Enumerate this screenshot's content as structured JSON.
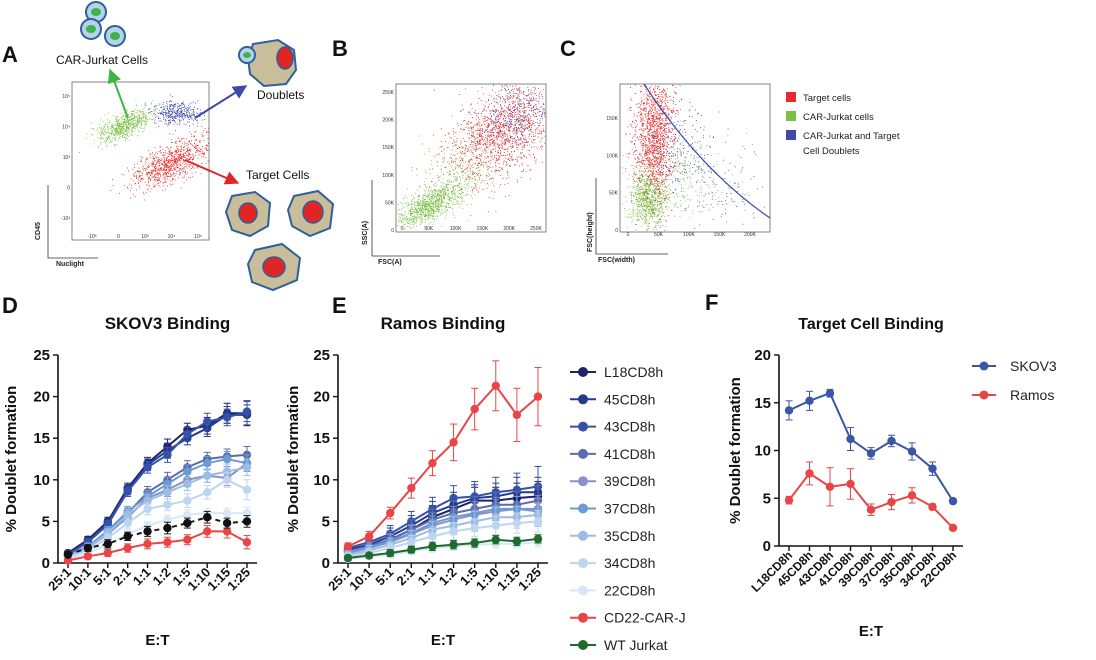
{
  "panel_labels": [
    "A",
    "B",
    "C",
    "D",
    "E",
    "F"
  ],
  "colors": {
    "target": "#ea2a2a",
    "car": "#7ac043",
    "doublet": "#3f4aa6",
    "cell_body": "#c9bd9a",
    "cell_outline": "#2e5f9e",
    "car_cell_body": "#b7d1e8",
    "cd22": "#e84646",
    "wt": "#1f6b2e",
    "skov3_line": "#3a56a8",
    "ramos_line": "#e84646"
  },
  "panel_a": {
    "car_label": "CAR-Jurkat Cells",
    "doublets_label": "Doublets",
    "target_label": "Target Cells",
    "xlabel": "Nuclight",
    "ylabel": "CD45",
    "yticks": [
      "10⁵",
      "10⁴",
      "10³",
      "0",
      "-10³"
    ],
    "xticks": [
      "-10³",
      "0",
      "10³",
      "10⁴",
      "10⁵"
    ]
  },
  "panel_b": {
    "xlabel": "FSC(A)",
    "ylabel": "SSC(A)",
    "xticks": [
      "0",
      "50K",
      "100K",
      "150K",
      "200K",
      "250K"
    ],
    "yticks": [
      "250K",
      "200K",
      "150K",
      "100K",
      "50K",
      "0"
    ]
  },
  "panel_c": {
    "xlabel": "FSC(width)",
    "ylabel": "FSC(height)",
    "xticks": [
      "0",
      "50K",
      "100K",
      "150K",
      "200K"
    ],
    "yticks": [
      "150K",
      "100K",
      "50K",
      "0"
    ]
  },
  "flow_legend": {
    "items": [
      {
        "label": "Target cells",
        "color": "#ea2a2a"
      },
      {
        "label": "CAR-Jurkat cells",
        "color": "#7ac043"
      },
      {
        "label": "CAR-Jurkat and Target",
        "label2": "Cell Doublets",
        "color": "#3f4aa6"
      }
    ]
  },
  "line_legend": {
    "items": [
      {
        "label": "L18CD8h",
        "color": "#1b2369"
      },
      {
        "label": "45CD8h",
        "color": "#263b8f"
      },
      {
        "label": "43CD8h",
        "color": "#3652a8"
      },
      {
        "label": "41CD8h",
        "color": "#5e6aad"
      },
      {
        "label": "39CD8h",
        "color": "#8d8fc8"
      },
      {
        "label": "37CD8h",
        "color": "#6b9bd3"
      },
      {
        "label": "35CD8h",
        "color": "#9cbde3"
      },
      {
        "label": "34CD8h",
        "color": "#bdd5ef"
      },
      {
        "label": "22CD8h",
        "color": "#d7e7f7"
      },
      {
        "label": "CD22-CAR-J",
        "color": "#e84646"
      },
      {
        "label": "WT Jurkat",
        "color": "#1f6b2e"
      }
    ]
  },
  "chart_data": [
    {
      "id": "D",
      "type": "line",
      "title": "SKOV3 Binding",
      "xlabel": "E:T",
      "ylabel": "% Doublet formation",
      "ylim": [
        0,
        25
      ],
      "yticks": [
        "0",
        "5",
        "10",
        "15",
        "20",
        "25"
      ],
      "categories": [
        "25:1",
        "10:1",
        "5:1",
        "2:1",
        "1:1",
        "1:2",
        "1:5",
        "1:10",
        "1:15",
        "1:25"
      ],
      "series": [
        {
          "name": "L18CD8h",
          "color": "#1b2369",
          "values": [
            1.2,
            2.8,
            5.0,
            9.0,
            12.0,
            14.0,
            16.0,
            16.5,
            18.0,
            18.0
          ],
          "err": [
            0.3,
            0.4,
            0.5,
            0.6,
            0.7,
            0.9,
            0.8,
            1.0,
            1.2,
            1.5
          ]
        },
        {
          "name": "45CD8h",
          "color": "#263b8f",
          "values": [
            1.1,
            2.6,
            4.8,
            8.8,
            11.8,
            13.5,
            15.0,
            16.2,
            17.8,
            17.8
          ],
          "err": [
            0.3,
            0.4,
            0.5,
            0.6,
            0.7,
            0.9,
            0.8,
            1.0,
            1.0,
            1.2
          ]
        },
        {
          "name": "43CD8h",
          "color": "#3652a8",
          "values": [
            1.0,
            2.5,
            4.6,
            8.6,
            11.5,
            13.0,
            15.5,
            17.0,
            17.5,
            18.2
          ],
          "err": [
            0.3,
            0.4,
            0.5,
            0.6,
            0.7,
            0.9,
            0.8,
            1.0,
            1.0,
            1.2
          ]
        },
        {
          "name": "41CD8h",
          "color": "#5e6aad",
          "values": [
            0.9,
            2.0,
            3.8,
            6.0,
            8.5,
            10.0,
            11.5,
            12.5,
            12.8,
            13.0
          ],
          "err": [
            0.3,
            0.4,
            0.5,
            0.6,
            0.7,
            0.9,
            0.8,
            0.8,
            0.9,
            1.0
          ]
        },
        {
          "name": "39CD8h",
          "color": "#8d8fc8",
          "values": [
            0.8,
            1.8,
            3.5,
            5.5,
            7.8,
            8.8,
            10.0,
            10.5,
            10.2,
            12.0
          ],
          "err": [
            0.3,
            0.4,
            0.5,
            0.6,
            0.7,
            0.8,
            0.8,
            0.8,
            0.9,
            1.0
          ]
        },
        {
          "name": "37CD8h",
          "color": "#6b9bd3",
          "values": [
            0.9,
            2.0,
            3.9,
            6.2,
            8.0,
            9.5,
            11.0,
            12.0,
            12.5,
            12.0
          ],
          "err": [
            0.3,
            0.4,
            0.5,
            0.6,
            0.7,
            0.8,
            0.8,
            0.8,
            0.9,
            1.0
          ]
        },
        {
          "name": "35CD8h",
          "color": "#9cbde3",
          "values": [
            0.8,
            1.8,
            3.6,
            5.8,
            7.5,
            8.5,
            9.5,
            10.5,
            11.0,
            11.5
          ],
          "err": [
            0.3,
            0.4,
            0.5,
            0.6,
            0.7,
            0.8,
            0.8,
            0.8,
            0.9,
            1.0
          ]
        },
        {
          "name": "34CD8h",
          "color": "#bdd5ef",
          "values": [
            0.7,
            1.5,
            3.0,
            4.8,
            6.5,
            7.0,
            7.5,
            8.5,
            10.0,
            8.8
          ],
          "err": [
            0.3,
            0.4,
            0.5,
            0.6,
            0.7,
            0.7,
            0.8,
            0.8,
            0.9,
            1.2
          ]
        },
        {
          "name": "22CD8h",
          "color": "#d7e7f7",
          "values": [
            0.5,
            1.2,
            2.2,
            3.5,
            4.5,
            5.2,
            5.8,
            6.0,
            6.0,
            6.0
          ],
          "err": [
            0.3,
            0.3,
            0.4,
            0.5,
            0.5,
            0.6,
            0.6,
            0.6,
            0.6,
            0.7
          ]
        },
        {
          "name": "CD22-CAR-J",
          "color": "#e84646",
          "values": [
            0.3,
            0.8,
            1.2,
            1.8,
            2.3,
            2.5,
            2.8,
            3.8,
            3.8,
            2.5
          ],
          "err": [
            0.2,
            0.3,
            0.4,
            0.5,
            0.6,
            0.6,
            0.6,
            0.7,
            0.8,
            0.8
          ]
        },
        {
          "name": "WT Jurkat",
          "color": "#1a1a1a",
          "dashed": true,
          "values": [
            1.0,
            1.8,
            2.3,
            3.2,
            3.8,
            4.2,
            4.8,
            5.5,
            4.8,
            5.0
          ],
          "err": [
            0.3,
            0.4,
            0.5,
            0.5,
            0.6,
            0.7,
            0.6,
            0.7,
            0.6,
            0.7
          ]
        }
      ]
    },
    {
      "id": "E",
      "type": "line",
      "title": "Ramos  Binding",
      "xlabel": "E:T",
      "ylabel": "% Doublet formation",
      "ylim": [
        0,
        25
      ],
      "yticks": [
        "0",
        "5",
        "10",
        "15",
        "20",
        "25"
      ],
      "categories": [
        "25:1",
        "10:1",
        "5:1",
        "2:1",
        "1:1",
        "1:2",
        "1:5",
        "1:10",
        "1:15",
        "1:25"
      ],
      "series": [
        {
          "name": "L18CD8h",
          "color": "#1b2369",
          "values": [
            1.5,
            2.0,
            2.8,
            4.0,
            5.5,
            6.5,
            7.5,
            7.5,
            7.8,
            8.0
          ],
          "err": [
            0.6,
            0.8,
            1.0,
            1.2,
            1.4,
            1.5,
            1.6,
            1.6,
            1.8,
            1.8
          ]
        },
        {
          "name": "45CD8h",
          "color": "#263b8f",
          "values": [
            1.6,
            2.2,
            3.2,
            4.5,
            6.0,
            7.0,
            7.8,
            8.0,
            8.5,
            8.5
          ],
          "err": [
            0.6,
            0.8,
            1.0,
            1.2,
            1.4,
            1.5,
            1.6,
            1.6,
            1.8,
            1.8
          ]
        },
        {
          "name": "43CD8h",
          "color": "#3652a8",
          "values": [
            1.8,
            2.5,
            3.5,
            5.0,
            6.5,
            7.8,
            8.0,
            8.5,
            8.8,
            9.2
          ],
          "err": [
            0.6,
            0.8,
            1.0,
            1.2,
            1.4,
            1.5,
            1.8,
            1.8,
            2.0,
            2.4
          ]
        },
        {
          "name": "41CD8h",
          "color": "#5e6aad",
          "values": [
            1.4,
            2.0,
            2.8,
            4.0,
            5.2,
            6.0,
            6.5,
            7.0,
            7.0,
            7.5
          ],
          "err": [
            0.6,
            0.8,
            1.0,
            1.2,
            1.3,
            1.4,
            1.5,
            1.5,
            1.6,
            1.8
          ]
        },
        {
          "name": "39CD8h",
          "color": "#8d8fc8",
          "values": [
            1.2,
            1.8,
            2.5,
            3.5,
            4.5,
            5.2,
            5.8,
            6.2,
            6.5,
            6.5
          ],
          "err": [
            0.5,
            0.7,
            0.9,
            1.0,
            1.2,
            1.3,
            1.4,
            1.4,
            1.5,
            1.6
          ]
        },
        {
          "name": "37CD8h",
          "color": "#6b9bd3",
          "values": [
            1.3,
            1.9,
            2.6,
            3.6,
            4.8,
            5.5,
            6.0,
            6.5,
            6.5,
            6.2
          ],
          "err": [
            0.5,
            0.7,
            0.9,
            1.0,
            1.2,
            1.3,
            1.4,
            1.4,
            1.5,
            1.6
          ]
        },
        {
          "name": "35CD8h",
          "color": "#9cbde3",
          "values": [
            1.0,
            1.5,
            2.2,
            3.0,
            4.0,
            4.5,
            5.0,
            5.5,
            5.5,
            5.8
          ],
          "err": [
            0.5,
            0.6,
            0.8,
            0.9,
            1.0,
            1.1,
            1.2,
            1.2,
            1.3,
            1.4
          ]
        },
        {
          "name": "34CD8h",
          "color": "#bdd5ef",
          "values": [
            0.8,
            1.2,
            1.8,
            2.5,
            3.2,
            3.8,
            4.2,
            4.5,
            4.8,
            5.0
          ],
          "err": [
            0.4,
            0.5,
            0.6,
            0.8,
            0.9,
            1.0,
            1.0,
            1.1,
            1.2,
            1.3
          ]
        },
        {
          "name": "22CD8h",
          "color": "#d7e7f7",
          "values": [
            0.5,
            0.8,
            1.0,
            1.4,
            1.8,
            2.0,
            2.2,
            2.3,
            2.3,
            2.5
          ],
          "err": [
            0.3,
            0.3,
            0.4,
            0.4,
            0.5,
            0.5,
            0.5,
            0.5,
            0.5,
            0.6
          ]
        },
        {
          "name": "CD22-CAR-J",
          "color": "#e84646",
          "values": [
            2.0,
            3.2,
            6.0,
            9.0,
            12.0,
            14.5,
            18.5,
            21.3,
            17.8,
            20.0
          ],
          "err": [
            0.4,
            0.6,
            0.7,
            1.2,
            1.5,
            2.2,
            2.5,
            3.0,
            3.2,
            3.5
          ]
        },
        {
          "name": "WT Jurkat",
          "color": "#1f6b2e",
          "values": [
            0.6,
            0.9,
            1.2,
            1.6,
            2.0,
            2.2,
            2.4,
            2.8,
            2.6,
            2.9
          ],
          "err": [
            0.3,
            0.3,
            0.4,
            0.4,
            0.5,
            0.5,
            0.5,
            0.5,
            0.5,
            0.5
          ]
        }
      ]
    },
    {
      "id": "F",
      "type": "line",
      "title": "Target Cell Binding",
      "xlabel": "E:T",
      "ylabel": "% Doublet formation",
      "ylim": [
        0,
        20
      ],
      "yticks": [
        "0",
        "5",
        "10",
        "15",
        "20"
      ],
      "categories": [
        "L18CD8h",
        "45CD8h",
        "43CD8h",
        "41CD8h",
        "39CD8h",
        "37CD8h",
        "35CD8h",
        "34CD8h",
        "22CD8h"
      ],
      "series": [
        {
          "name": "SKOV3",
          "color": "#3a56a8",
          "values": [
            14.2,
            15.2,
            16.0,
            11.2,
            9.7,
            11.0,
            9.9,
            8.1,
            4.7
          ],
          "err": [
            1.0,
            1.0,
            0.4,
            1.2,
            0.6,
            0.6,
            0.9,
            0.7,
            0.2
          ]
        },
        {
          "name": "Ramos",
          "color": "#e84646",
          "values": [
            4.8,
            7.6,
            6.2,
            6.5,
            3.8,
            4.6,
            5.3,
            4.1,
            1.9
          ],
          "err": [
            0.4,
            1.2,
            2.0,
            1.6,
            0.6,
            0.8,
            0.8,
            0.3,
            0.2
          ]
        }
      ],
      "legend": [
        "SKOV3",
        "Ramos"
      ]
    }
  ]
}
